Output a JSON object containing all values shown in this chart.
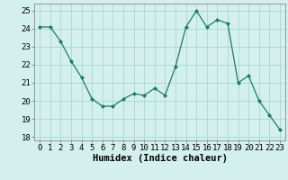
{
  "x": [
    0,
    1,
    2,
    3,
    4,
    5,
    6,
    7,
    8,
    9,
    10,
    11,
    12,
    13,
    14,
    15,
    16,
    17,
    18,
    19,
    20,
    21,
    22,
    23
  ],
  "y": [
    24.1,
    24.1,
    23.3,
    22.2,
    21.3,
    20.1,
    19.7,
    19.7,
    20.1,
    20.4,
    20.3,
    20.7,
    20.3,
    21.9,
    24.1,
    25.0,
    24.1,
    24.5,
    24.3,
    21.0,
    21.4,
    20.0,
    19.2,
    18.4
  ],
  "line_color": "#1a7a6e",
  "marker": "D",
  "marker_size": 2.0,
  "bg_color": "#d4f0ec",
  "grid_color": "#a8d8d0",
  "xlabel": "Humidex (Indice chaleur)",
  "ylim": [
    17.8,
    25.4
  ],
  "xlim": [
    -0.5,
    23.5
  ],
  "yticks": [
    18,
    19,
    20,
    21,
    22,
    23,
    24,
    25
  ],
  "xticks": [
    0,
    1,
    2,
    3,
    4,
    5,
    6,
    7,
    8,
    9,
    10,
    11,
    12,
    13,
    14,
    15,
    16,
    17,
    18,
    19,
    20,
    21,
    22,
    23
  ],
  "tick_fontsize": 6.5,
  "xlabel_fontsize": 7.5
}
